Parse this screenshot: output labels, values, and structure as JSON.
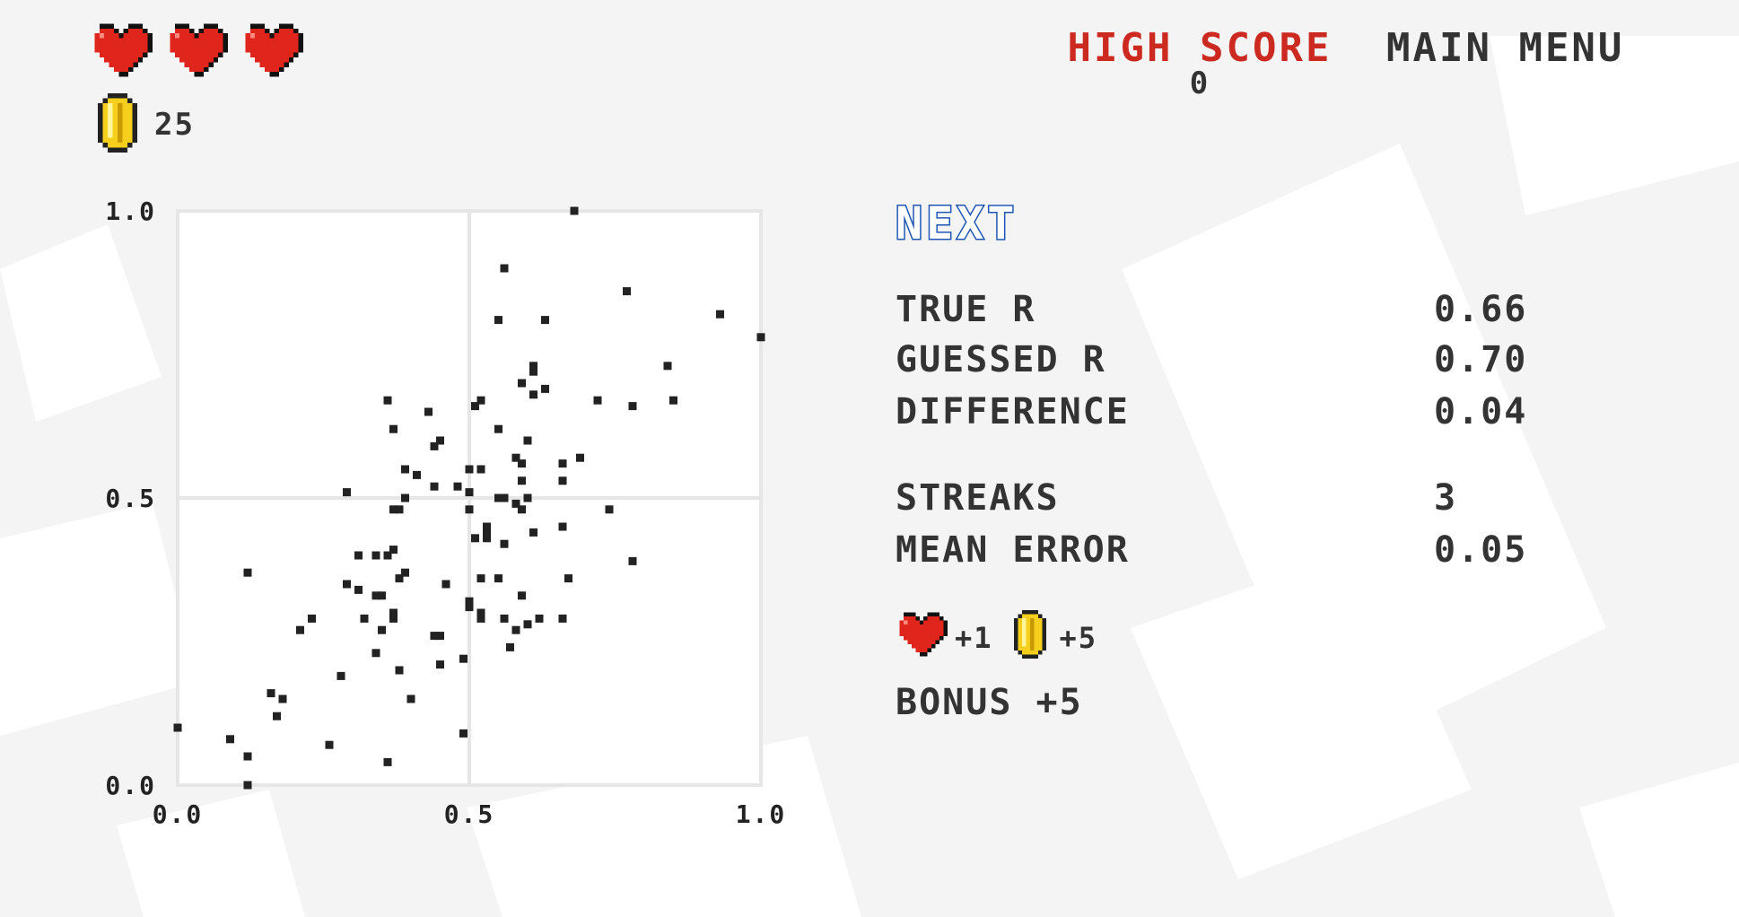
{
  "hud": {
    "hearts": 3,
    "coins": "25"
  },
  "nav": {
    "high_score_label": "HIGH SCORE",
    "high_score_value": "0",
    "main_menu_label": "MAIN MENU"
  },
  "colors": {
    "heart": "#e0251c",
    "high_score": "#cc2a21",
    "next": "#1f56b4",
    "coin": "#f5cf1b",
    "text": "#333333"
  },
  "next_label": "NEXT",
  "stats": {
    "true_r_label": "TRUE R",
    "true_r_value": "0.66",
    "guessed_r_label": "GUESSED R",
    "guessed_r_value": "0.70",
    "difference_label": "DIFFERENCE",
    "difference_value": "0.04",
    "streaks_label": "STREAKS",
    "streaks_value": "3",
    "mean_error_label": "MEAN ERROR",
    "mean_error_value": "0.05"
  },
  "reward": {
    "heart_bonus": "+1",
    "coin_bonus": "+5"
  },
  "bonus": "BONUS +5",
  "chart_data": {
    "type": "scatter",
    "title": "",
    "xlabel": "",
    "ylabel": "",
    "xlim": [
      0,
      1
    ],
    "ylim": [
      0,
      1
    ],
    "xticks": [
      "0.0",
      "0.5",
      "1.0"
    ],
    "yticks": [
      "0.0",
      "0.5",
      "1.0"
    ],
    "grid": true,
    "points": [
      [
        0.68,
        1.0
      ],
      [
        0.56,
        0.9
      ],
      [
        0.77,
        0.86
      ],
      [
        0.93,
        0.82
      ],
      [
        0.55,
        0.81
      ],
      [
        0.63,
        0.81
      ],
      [
        1.0,
        0.78
      ],
      [
        0.84,
        0.73
      ],
      [
        0.61,
        0.73
      ],
      [
        0.61,
        0.72
      ],
      [
        0.59,
        0.7
      ],
      [
        0.63,
        0.69
      ],
      [
        0.61,
        0.68
      ],
      [
        0.72,
        0.67
      ],
      [
        0.85,
        0.67
      ],
      [
        0.36,
        0.67
      ],
      [
        0.52,
        0.67
      ],
      [
        0.51,
        0.66
      ],
      [
        0.78,
        0.66
      ],
      [
        0.43,
        0.65
      ],
      [
        0.37,
        0.62
      ],
      [
        0.55,
        0.62
      ],
      [
        0.6,
        0.6
      ],
      [
        0.45,
        0.6
      ],
      [
        0.44,
        0.59
      ],
      [
        0.58,
        0.57
      ],
      [
        0.69,
        0.57
      ],
      [
        0.59,
        0.56
      ],
      [
        0.66,
        0.56
      ],
      [
        0.39,
        0.55
      ],
      [
        0.52,
        0.55
      ],
      [
        0.5,
        0.55
      ],
      [
        0.41,
        0.54
      ],
      [
        0.59,
        0.53
      ],
      [
        0.66,
        0.53
      ],
      [
        0.48,
        0.52
      ],
      [
        0.44,
        0.52
      ],
      [
        0.29,
        0.51
      ],
      [
        0.5,
        0.51
      ],
      [
        0.39,
        0.5
      ],
      [
        0.56,
        0.5
      ],
      [
        0.6,
        0.5
      ],
      [
        0.55,
        0.5
      ],
      [
        0.58,
        0.49
      ],
      [
        0.38,
        0.48
      ],
      [
        0.37,
        0.48
      ],
      [
        0.5,
        0.48
      ],
      [
        0.59,
        0.48
      ],
      [
        0.74,
        0.48
      ],
      [
        0.66,
        0.45
      ],
      [
        0.53,
        0.45
      ],
      [
        0.53,
        0.44
      ],
      [
        0.53,
        0.43
      ],
      [
        0.61,
        0.44
      ],
      [
        0.51,
        0.43
      ],
      [
        0.56,
        0.42
      ],
      [
        0.37,
        0.41
      ],
      [
        0.36,
        0.4
      ],
      [
        0.31,
        0.4
      ],
      [
        0.34,
        0.4
      ],
      [
        0.78,
        0.39
      ],
      [
        0.12,
        0.37
      ],
      [
        0.39,
        0.37
      ],
      [
        0.38,
        0.36
      ],
      [
        0.52,
        0.36
      ],
      [
        0.55,
        0.36
      ],
      [
        0.67,
        0.36
      ],
      [
        0.29,
        0.35
      ],
      [
        0.46,
        0.35
      ],
      [
        0.31,
        0.34
      ],
      [
        0.34,
        0.33
      ],
      [
        0.59,
        0.33
      ],
      [
        0.35,
        0.33
      ],
      [
        0.5,
        0.32
      ],
      [
        0.5,
        0.31
      ],
      [
        0.52,
        0.3
      ],
      [
        0.37,
        0.3
      ],
      [
        0.37,
        0.29
      ],
      [
        0.23,
        0.29
      ],
      [
        0.32,
        0.29
      ],
      [
        0.52,
        0.29
      ],
      [
        0.56,
        0.29
      ],
      [
        0.62,
        0.29
      ],
      [
        0.66,
        0.29
      ],
      [
        0.35,
        0.27
      ],
      [
        0.58,
        0.27
      ],
      [
        0.6,
        0.28
      ],
      [
        0.21,
        0.27
      ],
      [
        0.45,
        0.26
      ],
      [
        0.44,
        0.26
      ],
      [
        0.34,
        0.23
      ],
      [
        0.57,
        0.24
      ],
      [
        0.49,
        0.22
      ],
      [
        0.45,
        0.21
      ],
      [
        0.38,
        0.2
      ],
      [
        0.28,
        0.19
      ],
      [
        0.16,
        0.16
      ],
      [
        0.18,
        0.15
      ],
      [
        0.4,
        0.15
      ],
      [
        0.17,
        0.12
      ],
      [
        0.0,
        0.1
      ],
      [
        0.49,
        0.09
      ],
      [
        0.09,
        0.08
      ],
      [
        0.26,
        0.07
      ],
      [
        0.12,
        0.05
      ],
      [
        0.36,
        0.04
      ],
      [
        0.12,
        0.0
      ]
    ]
  }
}
